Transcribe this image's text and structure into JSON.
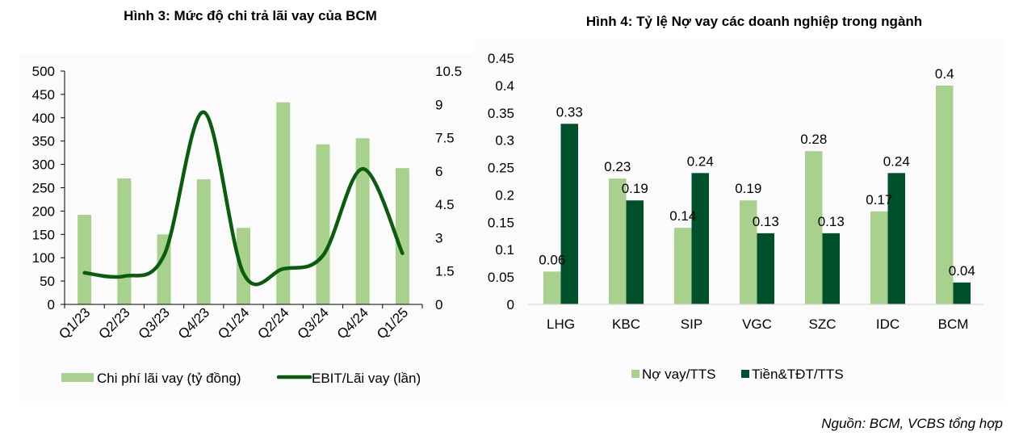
{
  "source_note": "Nguồn: BCM, VCBS tổng hợp",
  "colors": {
    "light_green": "#a9d18e",
    "dark_line": "#0a5c0f",
    "dark_bar": "#00502c",
    "axis": "#000000",
    "axis_light": "#d9d9d9",
    "panel_bg": "#fbfbfb"
  },
  "chart_data": [
    {
      "type": "bar",
      "combo": "bar+line",
      "title": "Hình 3: Mức độ chi trả lãi vay của BCM",
      "categories": [
        "Q1/23",
        "Q2/23",
        "Q3/23",
        "Q4/23",
        "Q1/24",
        "Q2/24",
        "Q3/24",
        "Q4/24",
        "Q1/25"
      ],
      "series": [
        {
          "name": "Chi phí lãi vay (tỷ đồng)",
          "type": "bar",
          "axis": "left",
          "values": [
            192,
            270,
            150,
            268,
            164,
            433,
            343,
            356,
            292
          ]
        },
        {
          "name": "EBIT/Lãi vay (lần)",
          "type": "line",
          "smooth": true,
          "axis": "right",
          "values": [
            1.42,
            1.27,
            2.2,
            8.65,
            1.4,
            1.6,
            2.2,
            6.1,
            2.3
          ]
        }
      ],
      "ylim": [
        0,
        500
      ],
      "y_ticks": [
        "0",
        "50",
        "100",
        "150",
        "200",
        "250",
        "300",
        "350",
        "400",
        "450",
        "500"
      ],
      "y2lim": [
        0,
        10.5
      ],
      "y2_ticks": [
        "0",
        "1.5",
        "3",
        "4.5",
        "6",
        "7.5",
        "9",
        "10.5"
      ],
      "xlabel": "",
      "ylabel": "",
      "y2label": "",
      "grid": false,
      "legend": "bottom"
    },
    {
      "type": "bar",
      "title": "Hình 4: Tỷ lệ Nợ vay các doanh nghiệp trong ngành",
      "categories": [
        "LHG",
        "KBC",
        "SIP",
        "VGC",
        "SZC",
        "IDC",
        "BCM"
      ],
      "series": [
        {
          "name": "Nợ vay/TTS",
          "values": [
            0.06,
            0.23,
            0.14,
            0.19,
            0.28,
            0.17,
            0.4
          ],
          "labels": [
            "0.06",
            "0.23",
            "0.14",
            "0.19",
            "0.28",
            "0.17",
            "0.4"
          ]
        },
        {
          "name": "Tiền&TĐT/TTS",
          "values": [
            0.33,
            0.19,
            0.24,
            0.13,
            0.13,
            0.24,
            0.04
          ],
          "labels": [
            "0.33",
            "0.19",
            "0.24",
            "0.13",
            "0.13",
            "0.24",
            "0.04"
          ]
        }
      ],
      "ylim": [
        0,
        0.45
      ],
      "y_ticks": [
        "0",
        "0.05",
        "0.1",
        "0.15",
        "0.2",
        "0.25",
        "0.3",
        "0.35",
        "0.4",
        "0.45"
      ],
      "xlabel": "",
      "ylabel": "",
      "grid": false,
      "legend": "bottom"
    }
  ]
}
